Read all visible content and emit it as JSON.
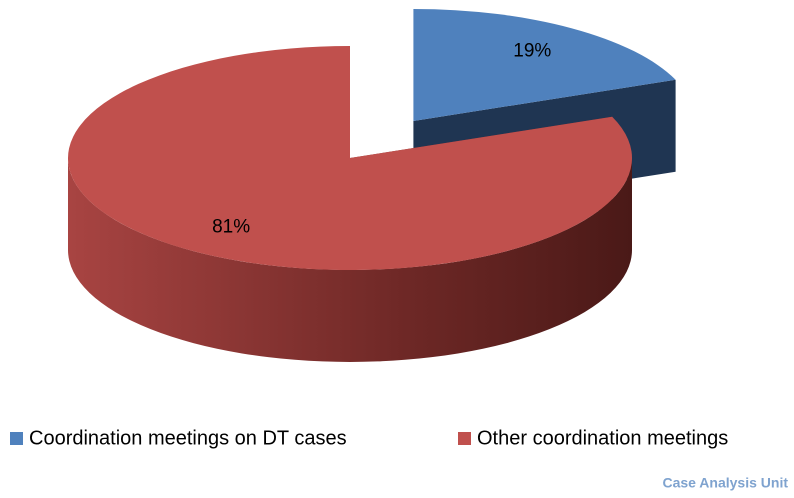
{
  "chart_data": {
    "type": "pie",
    "categories": [
      "Coordination meetings on DT cases",
      "Other coordination meetings"
    ],
    "values": [
      19,
      81
    ],
    "value_labels": [
      "19%",
      "81%"
    ],
    "colors": [
      "#4f81bd",
      "#c0504d"
    ],
    "side_colors": [
      "#1f3552",
      "#7a2e2c"
    ],
    "legend": "bottom",
    "footer": "Case Analysis Unit"
  }
}
